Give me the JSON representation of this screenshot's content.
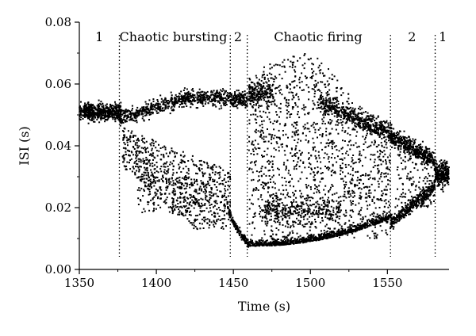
{
  "chart_data": {
    "type": "scatter",
    "title": "",
    "xlabel": "Time (s)",
    "ylabel": "ISI (s)",
    "xlim": [
      1350,
      1590
    ],
    "ylim": [
      0,
      0.08
    ],
    "x_ticks": [
      1350,
      1400,
      1450,
      1500,
      1550
    ],
    "x_tick_labels": [
      "1350",
      "1400",
      "1450",
      "1500",
      "1550"
    ],
    "y_ticks": [
      0,
      0.02,
      0.04,
      0.06,
      0.08
    ],
    "y_tick_labels": [
      "0.00",
      "0.02",
      "0.04",
      "0.06",
      "0.08"
    ],
    "grid": false,
    "marker_color": "#000000",
    "boundaries": [
      1376,
      1448,
      1459,
      1552,
      1581
    ],
    "regions": [
      {
        "label": "1",
        "x": 1363
      },
      {
        "label": "Chaotic bursting",
        "x": 1411
      },
      {
        "label": "2",
        "x": 1453
      },
      {
        "label": "Chaotic firing",
        "x": 1505
      },
      {
        "label": "2",
        "x": 1566
      },
      {
        "label": "1",
        "x": 1586
      }
    ],
    "segments": [
      {
        "name": "period-1 band",
        "x_range": [
          1350,
          1376
        ],
        "y_center": 0.051,
        "y_spread": 0.003
      },
      {
        "name": "bursting upper branch",
        "x_range": [
          1376,
          1448
        ],
        "y_center_from": 0.049,
        "y_center_to": 0.056,
        "y_spread": 0.003
      },
      {
        "name": "bursting scattered lower cloud",
        "x_range": [
          1378,
          1446
        ],
        "y_range": [
          0.012,
          0.045
        ]
      },
      {
        "name": "period-2 upper",
        "x_range": [
          1448,
          1459
        ],
        "y_center": 0.055,
        "y_spread": 0.003
      },
      {
        "name": "period-2 lower",
        "x_range": [
          1447,
          1460
        ],
        "y_center_from": 0.02,
        "y_center_to": 0.008
      },
      {
        "name": "firing bottom curve",
        "x_range": [
          1459,
          1552
        ],
        "y_center_min": 0.007,
        "y_center_max_right": 0.016
      },
      {
        "name": "firing chaotic cloud",
        "x_range": [
          1459,
          1552
        ],
        "y_range": [
          0.01,
          0.072
        ]
      },
      {
        "name": "firing upper declining branch",
        "x_range": [
          1500,
          1552
        ],
        "y_center_from": 0.054,
        "y_center_to": 0.044
      },
      {
        "name": "period-2 converging",
        "x_range": [
          1552,
          1581
        ],
        "y_upper_from": 0.043,
        "y_upper_to": 0.035,
        "y_lower_from": 0.016,
        "y_lower_to": 0.028
      },
      {
        "name": "period-1 band end",
        "x_range": [
          1581,
          1590
        ],
        "y_center": 0.031,
        "y_spread": 0.004
      }
    ]
  }
}
